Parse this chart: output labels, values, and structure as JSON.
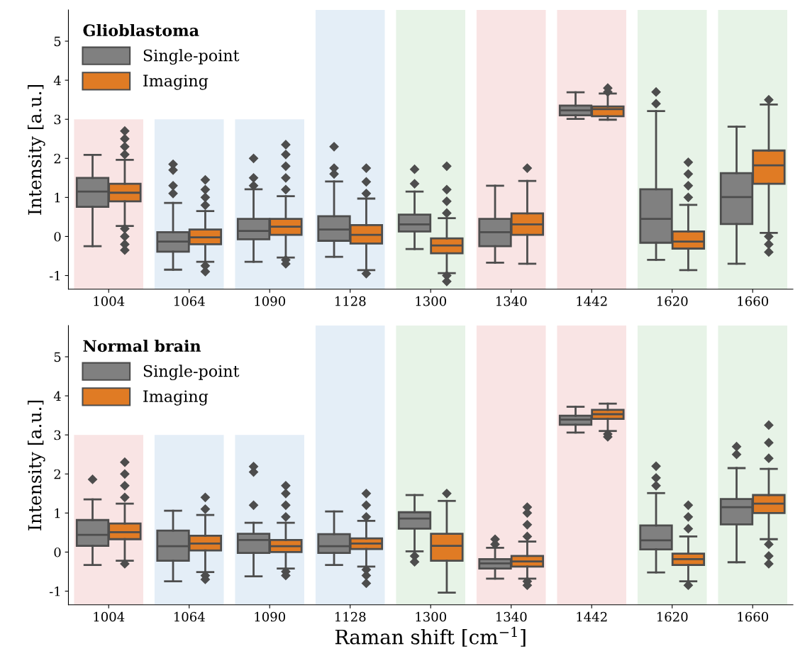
{
  "chart_data": [
    {
      "type": "box",
      "legend_title": "Glioblastoma",
      "legend": "top left",
      "ylabel": "Intensity [a.u.]",
      "ylim": [
        -1.35,
        5.8
      ],
      "yticks": [
        -1,
        0,
        1,
        2,
        3,
        4,
        5
      ],
      "grid": false,
      "marker": "diamond",
      "categories": [
        "1004",
        "1064",
        "1090",
        "1128",
        "1300",
        "1340",
        "1442",
        "1620",
        "1660"
      ],
      "series": [
        {
          "type": "bar",
          "base": [
            -1.35,
            -1.35,
            -1.35,
            -1.35,
            -1.35,
            -1.35,
            -1.35,
            -1.35,
            -1.35
          ],
          "values": [
            4.35,
            4.35,
            4.35,
            7.15,
            7.15,
            7.15,
            7.15,
            7.15,
            7.15
          ],
          "colors": [
            "#f9e4e4",
            "#e4eef7",
            "#e4eef7",
            "#e4eef7",
            "#e7f3e7",
            "#f9e4e4",
            "#f9e4e4",
            "#e7f3e7",
            "#e7f3e7"
          ]
        },
        {
          "name": "Single-point",
          "color": "#808080",
          "boxes": [
            {
              "low": -0.25,
              "q1": 0.76,
              "median": 1.15,
              "q3": 1.5,
              "high": 2.09
            },
            {
              "low": -0.85,
              "q1": -0.39,
              "median": -0.13,
              "q3": 0.11,
              "high": 0.86,
              "outliers": [
                1.1,
                1.3,
                1.7,
                1.85
              ]
            },
            {
              "low": -0.65,
              "q1": -0.07,
              "median": 0.14,
              "q3": 0.45,
              "high": 1.21,
              "outliers": [
                1.3,
                1.5,
                2.0
              ]
            },
            {
              "low": -0.52,
              "q1": -0.11,
              "median": 0.18,
              "q3": 0.52,
              "high": 1.41,
              "outliers": [
                1.6,
                1.75,
                2.3
              ]
            },
            {
              "low": -0.32,
              "q1": 0.13,
              "median": 0.31,
              "q3": 0.56,
              "high": 1.15,
              "outliers": [
                1.35,
                1.72
              ]
            },
            {
              "low": -0.67,
              "q1": -0.25,
              "median": 0.11,
              "q3": 0.45,
              "high": 1.3
            },
            {
              "low": 3.01,
              "q1": 3.1,
              "median": 3.23,
              "q3": 3.35,
              "high": 3.69
            },
            {
              "low": -0.6,
              "q1": -0.16,
              "median": 0.45,
              "q3": 1.21,
              "high": 3.21,
              "outliers": [
                3.4,
                3.7
              ]
            },
            {
              "low": -0.7,
              "q1": 0.32,
              "median": 1.01,
              "q3": 1.62,
              "high": 2.81
            }
          ]
        },
        {
          "name": "Imaging",
          "color": "#e07b24",
          "boxes": [
            {
              "low": 0.27,
              "q1": 0.9,
              "median": 1.12,
              "q3": 1.35,
              "high": 1.96,
              "outliers": [
                2.1,
                2.3,
                2.5,
                2.7,
                0.2,
                0.0,
                -0.2,
                -0.35
              ]
            },
            {
              "low": -0.65,
              "q1": -0.2,
              "median": -0.02,
              "q3": 0.18,
              "high": 0.65,
              "outliers": [
                0.8,
                1.0,
                1.2,
                1.45,
                -0.75,
                -0.9
              ]
            },
            {
              "low": -0.54,
              "q1": 0.04,
              "median": 0.25,
              "q3": 0.45,
              "high": 1.03,
              "outliers": [
                1.2,
                1.5,
                1.8,
                2.1,
                2.35,
                -0.6,
                -0.7
              ]
            },
            {
              "low": -0.86,
              "q1": -0.18,
              "median": 0.04,
              "q3": 0.29,
              "high": 0.97,
              "outliers": [
                1.1,
                1.4,
                1.75,
                -0.95
              ]
            },
            {
              "low": -0.94,
              "q1": -0.43,
              "median": -0.23,
              "q3": -0.05,
              "high": 0.47,
              "outliers": [
                0.6,
                0.9,
                1.2,
                1.8,
                -1.0,
                -1.15
              ]
            },
            {
              "low": -0.7,
              "q1": 0.04,
              "median": 0.31,
              "q3": 0.59,
              "high": 1.42,
              "outliers": [
                1.75
              ]
            },
            {
              "low": 2.99,
              "q1": 3.08,
              "median": 3.26,
              "q3": 3.33,
              "high": 3.66,
              "outliers": [
                3.7,
                3.8
              ]
            },
            {
              "low": -0.86,
              "q1": -0.31,
              "median": -0.13,
              "q3": 0.13,
              "high": 0.81,
              "outliers": [
                1.0,
                1.3,
                1.6,
                1.9
              ]
            },
            {
              "low": 0.09,
              "q1": 1.35,
              "median": 1.82,
              "q3": 2.2,
              "high": 3.38,
              "outliers": [
                3.5,
                0.0,
                -0.2,
                -0.4
              ]
            }
          ]
        }
      ]
    },
    {
      "type": "box",
      "legend_title": "Normal brain",
      "legend": "top left",
      "ylabel": "Intensity [a.u.]",
      "xlabel": "Raman shift [cm$^{−1}$]",
      "ylim": [
        -1.35,
        5.8
      ],
      "yticks": [
        -1,
        0,
        1,
        2,
        3,
        4,
        5
      ],
      "grid": false,
      "marker": "diamond",
      "categories": [
        "1004",
        "1064",
        "1090",
        "1128",
        "1300",
        "1340",
        "1442",
        "1620",
        "1660"
      ],
      "series": [
        {
          "type": "bar",
          "base": [
            -1.35,
            -1.35,
            -1.35,
            -1.35,
            -1.35,
            -1.35,
            -1.35,
            -1.35,
            -1.35
          ],
          "values": [
            4.35,
            4.35,
            4.35,
            7.15,
            7.15,
            7.15,
            7.15,
            7.15,
            7.15
          ],
          "colors": [
            "#f9e4e4",
            "#e4eef7",
            "#e4eef7",
            "#e4eef7",
            "#e7f3e7",
            "#f9e4e4",
            "#f9e4e4",
            "#e7f3e7",
            "#e7f3e7"
          ]
        },
        {
          "name": "Single-point",
          "color": "#808080",
          "boxes": [
            {
              "low": -0.33,
              "q1": 0.16,
              "median": 0.44,
              "q3": 0.82,
              "high": 1.35,
              "outliers": [
                1.86
              ]
            },
            {
              "low": -0.75,
              "q1": -0.22,
              "median": 0.15,
              "q3": 0.55,
              "high": 1.06
            },
            {
              "low": -0.62,
              "q1": -0.02,
              "median": 0.31,
              "q3": 0.47,
              "high": 0.75,
              "outliers": [
                1.2,
                2.05,
                2.19
              ]
            },
            {
              "low": -0.33,
              "q1": -0.02,
              "median": 0.15,
              "q3": 0.46,
              "high": 1.04
            },
            {
              "low": 0.02,
              "q1": 0.6,
              "median": 0.86,
              "q3": 1.02,
              "high": 1.46,
              "outliers": [
                -0.1,
                -0.25
              ]
            },
            {
              "low": -0.68,
              "q1": -0.42,
              "median": -0.29,
              "q3": -0.18,
              "high": 0.11,
              "outliers": [
                0.2,
                0.33
              ]
            },
            {
              "low": 3.06,
              "q1": 3.26,
              "median": 3.39,
              "q3": 3.49,
              "high": 3.72
            },
            {
              "low": -0.52,
              "q1": 0.07,
              "median": 0.3,
              "q3": 0.68,
              "high": 1.51,
              "outliers": [
                1.7,
                1.9,
                2.2
              ]
            },
            {
              "low": -0.26,
              "q1": 0.71,
              "median": 1.15,
              "q3": 1.36,
              "high": 2.15,
              "outliers": [
                2.5,
                2.7
              ]
            }
          ]
        },
        {
          "name": "Imaging",
          "color": "#e07b24",
          "boxes": [
            {
              "low": -0.22,
              "q1": 0.33,
              "median": 0.51,
              "q3": 0.73,
              "high": 1.24,
              "outliers": [
                1.4,
                1.7,
                2.0,
                2.3,
                -0.3
              ]
            },
            {
              "low": -0.51,
              "q1": 0.04,
              "median": 0.22,
              "q3": 0.42,
              "high": 0.95,
              "outliers": [
                1.1,
                1.4,
                -0.6,
                -0.7
              ]
            },
            {
              "low": -0.42,
              "q1": 0.0,
              "median": 0.15,
              "q3": 0.31,
              "high": 0.75,
              "outliers": [
                0.9,
                1.2,
                1.5,
                1.7,
                -0.5,
                -0.6
              ]
            },
            {
              "low": -0.37,
              "q1": 0.08,
              "median": 0.22,
              "q3": 0.35,
              "high": 0.8,
              "outliers": [
                0.9,
                1.2,
                1.5,
                -0.45,
                -0.6,
                -0.8
              ]
            },
            {
              "low": -1.04,
              "q1": -0.22,
              "median": 0.16,
              "q3": 0.47,
              "high": 1.31,
              "outliers": [
                1.5
              ]
            },
            {
              "low": -0.68,
              "q1": -0.37,
              "median": -0.24,
              "q3": -0.1,
              "high": 0.27,
              "outliers": [
                0.4,
                0.7,
                1.0,
                1.15,
                -0.75,
                -0.85
              ]
            },
            {
              "low": 3.1,
              "q1": 3.41,
              "median": 3.53,
              "q3": 3.64,
              "high": 3.8,
              "outliers": [
                3.02,
                2.95
              ]
            },
            {
              "low": -0.75,
              "q1": -0.33,
              "median": -0.18,
              "q3": -0.04,
              "high": 0.4,
              "outliers": [
                0.6,
                0.9,
                1.2,
                -0.85
              ]
            },
            {
              "low": 0.33,
              "q1": 1.0,
              "median": 1.24,
              "q3": 1.46,
              "high": 2.13,
              "outliers": [
                2.4,
                2.8,
                3.25,
                0.2,
                -0.1,
                -0.3
              ]
            }
          ]
        }
      ]
    }
  ]
}
